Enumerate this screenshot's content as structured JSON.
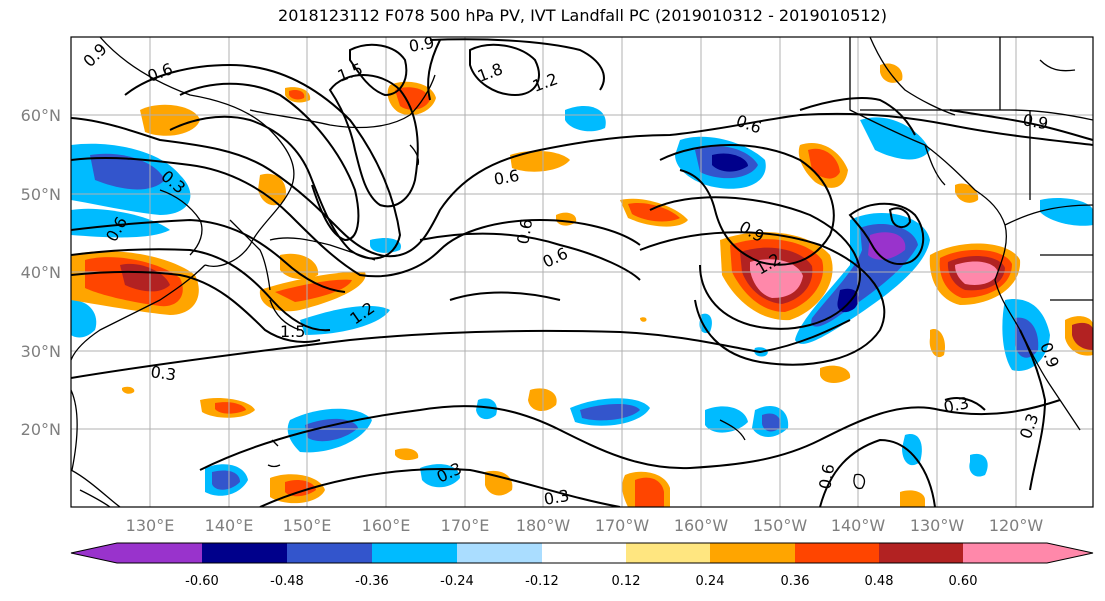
{
  "title": "2018123112 F078 500 hPa PV, IVT Landfall PC (2019010312 - 2019010512)",
  "lat_labels": [
    "60°N",
    "50°N",
    "40°N",
    "30°N",
    "20°N"
  ],
  "lon_labels": [
    "130°E",
    "140°E",
    "150°E",
    "160°E",
    "170°E",
    "180°W",
    "170°W",
    "160°W",
    "150°W",
    "140°W",
    "130°W",
    "120°W"
  ],
  "contour_labels": [
    "0.9",
    "0.6",
    "1.5",
    "1.8",
    "1.2",
    "0.9",
    "0.6",
    "0.3",
    "1.5",
    "1.2",
    "0.3",
    "0.6",
    "0.9",
    "1.2",
    "0.6",
    "0.3",
    "0.3",
    "0.3",
    "0.6",
    "0.9",
    "0.9",
    "0.6",
    "0.3",
    "0.6"
  ],
  "colorbar": {
    "ticks": [
      "-0.60",
      "-0.48",
      "-0.36",
      "-0.24",
      "-0.12",
      "0.12",
      "0.24",
      "0.36",
      "0.48",
      "0.60"
    ],
    "colors": [
      "#9933cc",
      "#00008b",
      "#3355cc",
      "#00bbff",
      "#aaddff",
      "#ffffff",
      "#ffe680",
      "#ffa500",
      "#ff4500",
      "#b22222",
      "#ff88aa",
      "#ff88aa"
    ]
  }
}
